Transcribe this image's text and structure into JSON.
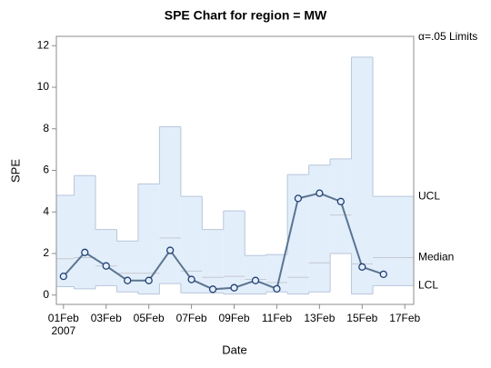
{
  "chart_data": {
    "type": "line",
    "title": "SPE Chart for region = MW",
    "x_label": "Date",
    "y_label": "SPE",
    "limits_note": "α=.05 Limits",
    "x": [
      "2007-02-01",
      "2007-02-02",
      "2007-02-03",
      "2007-02-04",
      "2007-02-05",
      "2007-02-06",
      "2007-02-07",
      "2007-02-08",
      "2007-02-09",
      "2007-02-10",
      "2007-02-11",
      "2007-02-12",
      "2007-02-13",
      "2007-02-14",
      "2007-02-15",
      "2007-02-16"
    ],
    "values": [
      0.9,
      2.05,
      1.4,
      0.7,
      0.7,
      2.15,
      0.75,
      0.28,
      0.35,
      0.7,
      0.3,
      4.65,
      4.9,
      4.5,
      1.35,
      1.0
    ],
    "color": "#5a7590",
    "marker_color": "#1f3f73",
    "limits": [
      {
        "name": "UCL",
        "values": [
          4.8,
          5.75,
          3.15,
          2.6,
          5.35,
          8.1,
          4.75,
          3.15,
          4.05,
          1.9,
          1.95,
          5.8,
          6.25,
          6.55,
          11.45,
          4.75
        ]
      },
      {
        "name": "Median",
        "values": [
          1.75,
          1.8,
          1.4,
          1.05,
          1.05,
          2.75,
          1.15,
          0.85,
          0.9,
          0.75,
          0.6,
          0.85,
          1.55,
          3.85,
          1.5,
          1.8
        ]
      },
      {
        "name": "LCL",
        "values": [
          0.4,
          0.3,
          0.45,
          0.15,
          0.05,
          0.55,
          0.1,
          0.1,
          0.05,
          0.05,
          0.15,
          0.05,
          0.15,
          2.0,
          0.05,
          0.45
        ]
      }
    ],
    "band_color": "#e3eefb",
    "xlim": [
      "2007-01-31T16:00",
      "2007-02-17T10:00"
    ],
    "xticks": [
      {
        "value": "2007-02-01",
        "label": "01Feb"
      },
      {
        "value": "2007-02-03",
        "label": "03Feb"
      },
      {
        "value": "2007-02-05",
        "label": "05Feb"
      },
      {
        "value": "2007-02-07",
        "label": "07Feb"
      },
      {
        "value": "2007-02-09",
        "label": "09Feb"
      },
      {
        "value": "2007-02-11",
        "label": "11Feb"
      },
      {
        "value": "2007-02-13",
        "label": "13Feb"
      },
      {
        "value": "2007-02-15",
        "label": "15Feb"
      },
      {
        "value": "2007-02-17",
        "label": "17Feb"
      }
    ],
    "x_year_label": "2007",
    "ylim": [
      -0.45,
      12.45
    ],
    "yticks": [
      0,
      2,
      4,
      6,
      8,
      10,
      12
    ]
  }
}
